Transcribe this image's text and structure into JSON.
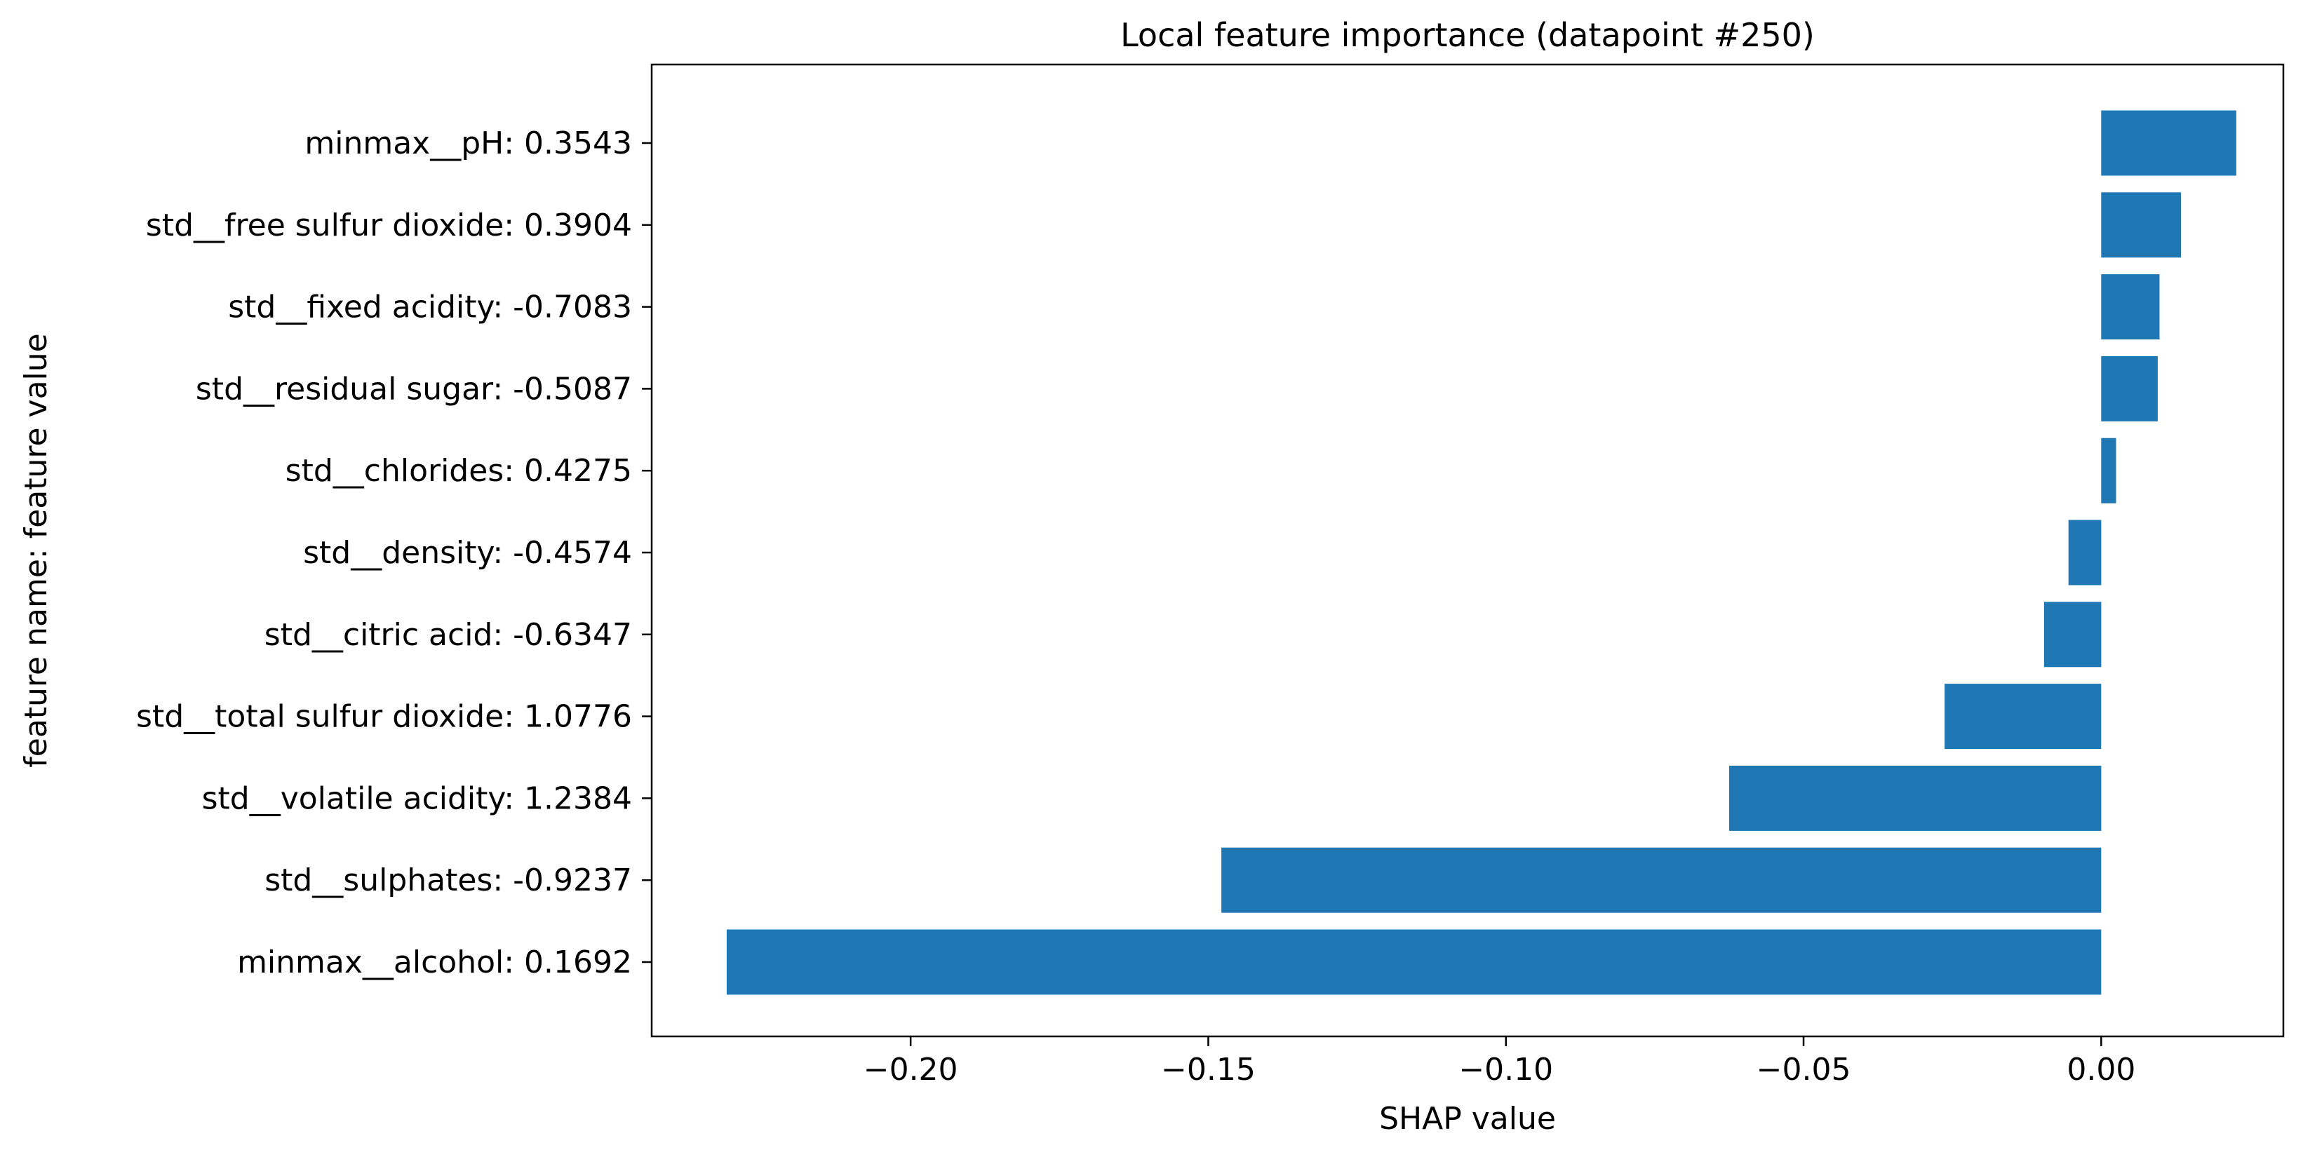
{
  "chart_data": {
    "type": "bar",
    "orientation": "horizontal",
    "title": "Local feature importance (datapoint #250)",
    "xlabel": "SHAP value",
    "ylabel": "feature name: feature value",
    "xlim": [
      -0.2435,
      0.0306
    ],
    "x_ticks": [
      -0.2,
      -0.15,
      -0.1,
      -0.05,
      0.0
    ],
    "x_tick_labels": [
      "−0.20",
      "−0.15",
      "−0.10",
      "−0.05",
      "0.00"
    ],
    "grid": false,
    "bar_color": "#1f77b4",
    "categories": [
      "minmax__pH: 0.3543",
      "std__free sulfur dioxide: 0.3904",
      "std__fixed acidity: -0.7083",
      "std__residual sugar: -0.5087",
      "std__chlorides: 0.4275",
      "std__density: -0.4574",
      "std__citric acid: -0.6347",
      "std__total sulfur dioxide: 1.0776",
      "std__volatile acidity: 1.2384",
      "std__sulphates: -0.9237",
      "minmax__alcohol: 0.1692"
    ],
    "values": [
      0.0227,
      0.0134,
      0.0098,
      0.0095,
      0.0025,
      -0.0055,
      -0.0096,
      -0.0263,
      -0.0625,
      -0.1478,
      -0.2309
    ]
  }
}
